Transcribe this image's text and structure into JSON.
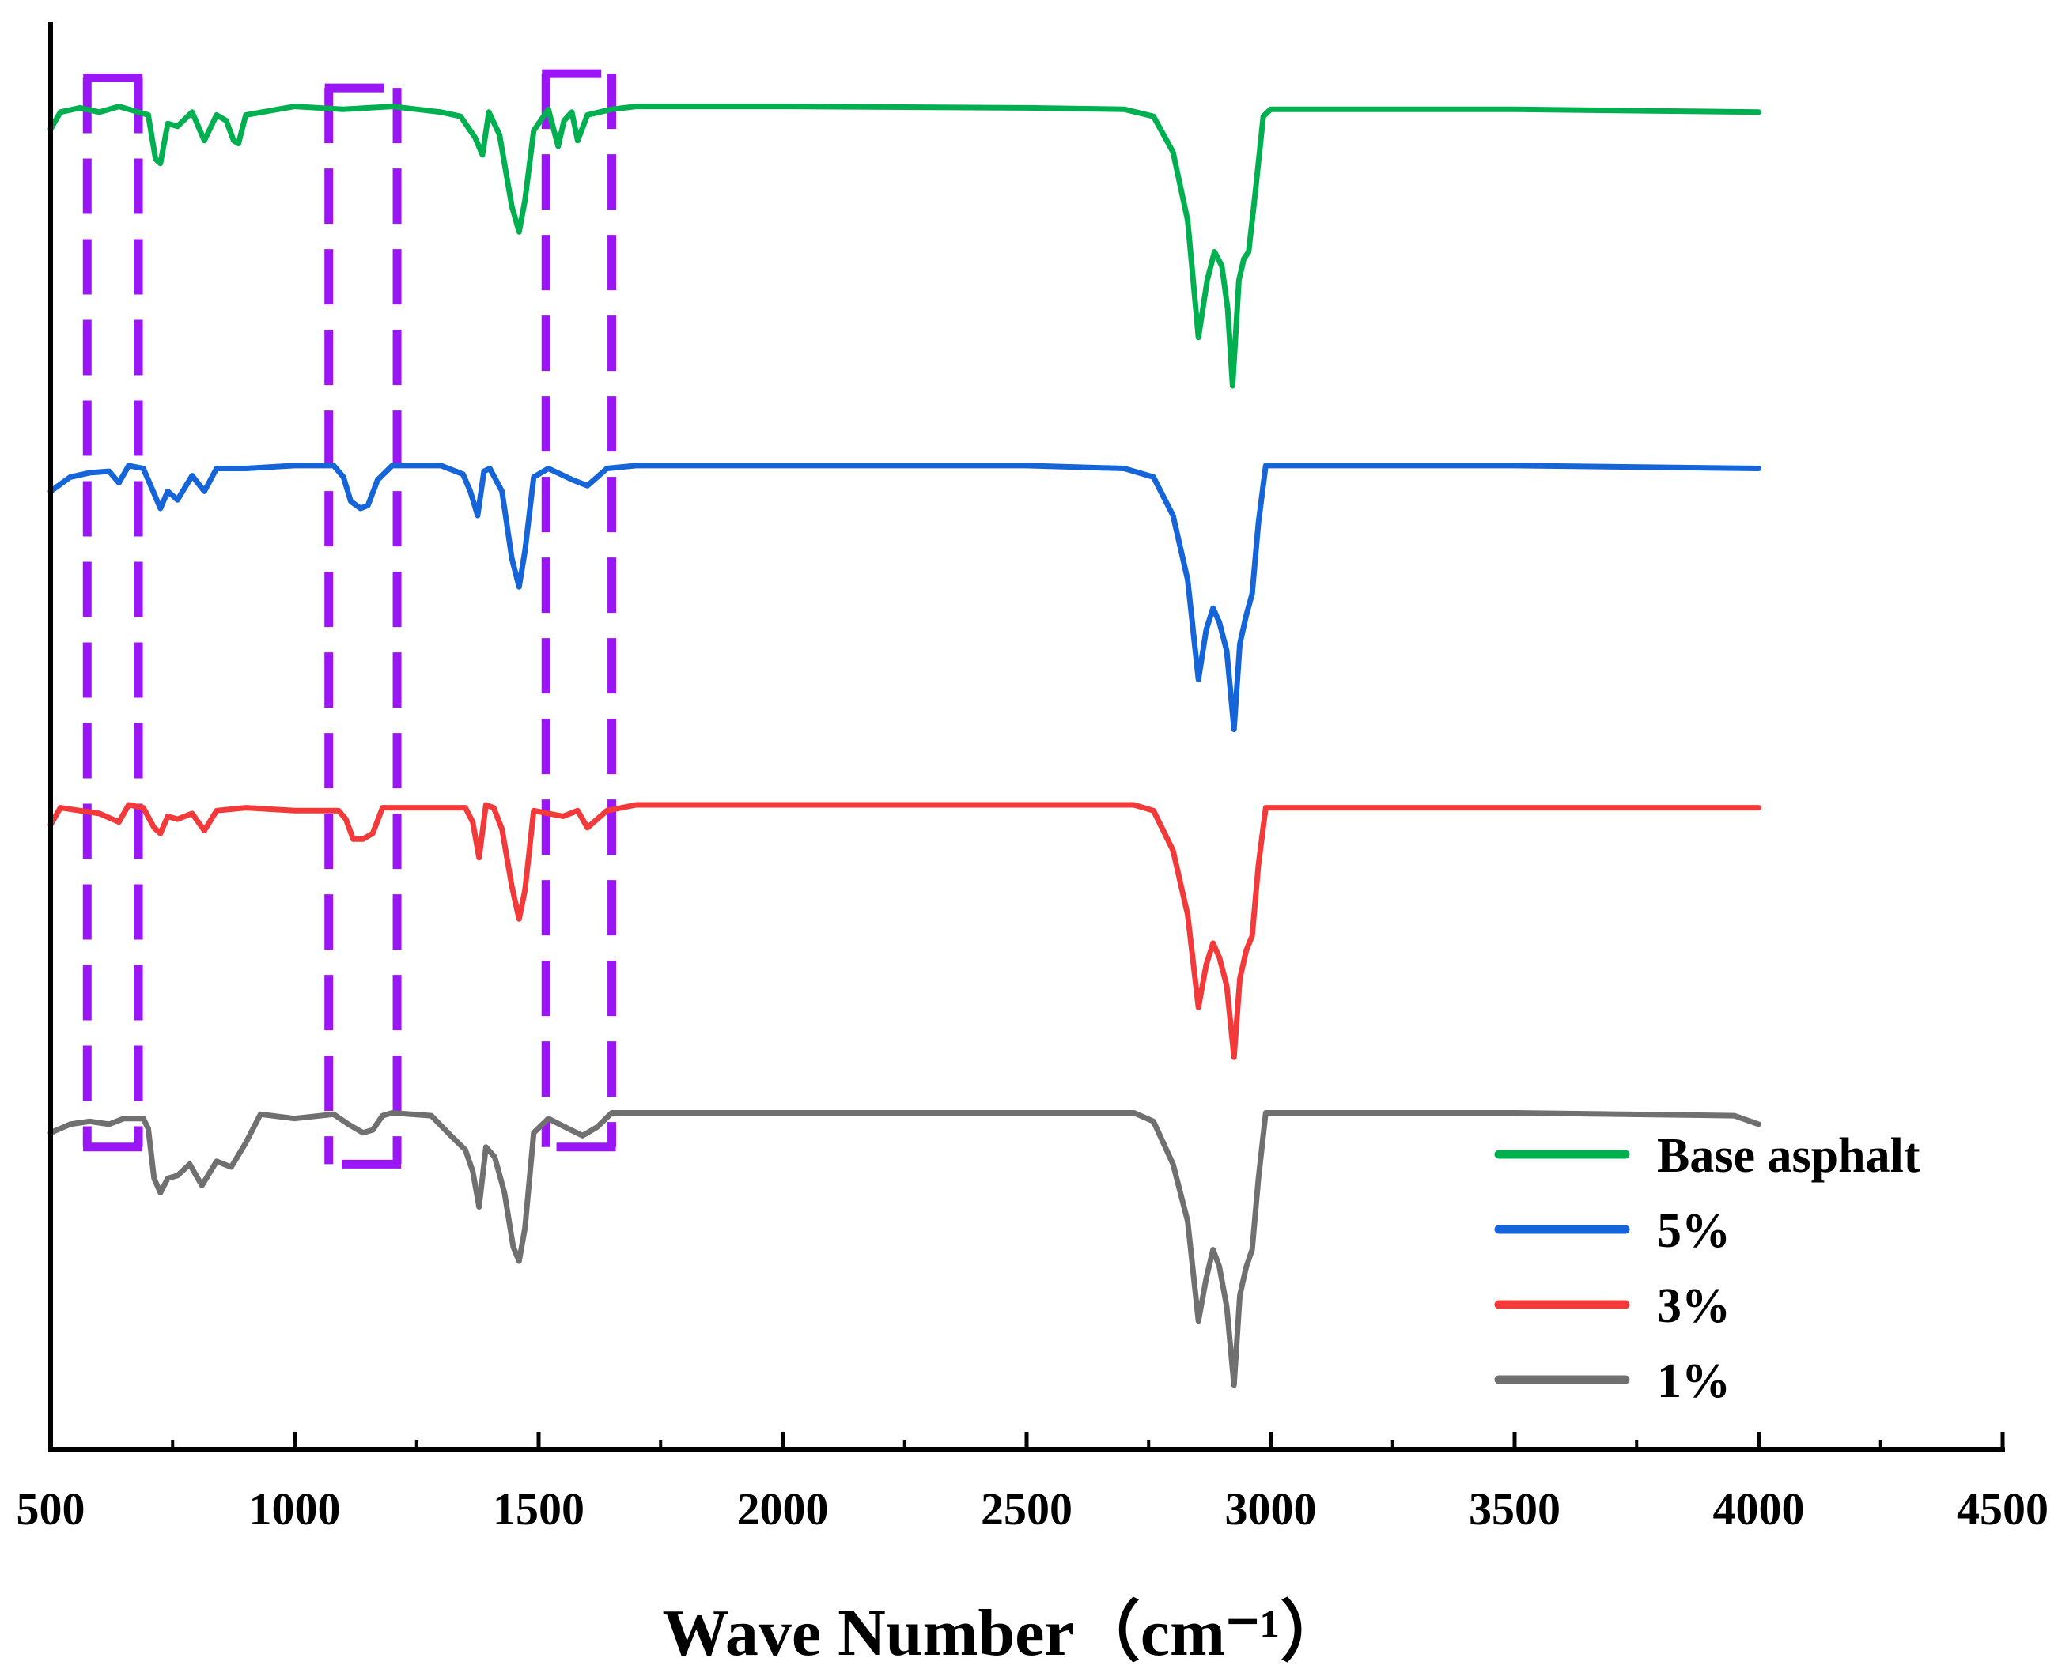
{
  "chart_data": {
    "type": "line",
    "title": "",
    "xlabel": "Wave Number（cm⁻¹）",
    "ylabel": "",
    "xlim": [
      500,
      4500
    ],
    "x_ticks": [
      "500",
      "1000",
      "1500",
      "2000",
      "2500",
      "3000",
      "3500",
      "4000",
      "4500"
    ],
    "y_ticks": [],
    "grid": false,
    "legend_position": "bottom-right",
    "offset_stacked": true,
    "series": [
      {
        "name": "Base asphalt",
        "color": "#00b050",
        "baseline_level": 0.94,
        "points": [
          [
            500,
            0.926
          ],
          [
            520,
            0.938
          ],
          [
            560,
            0.941
          ],
          [
            600,
            0.938
          ],
          [
            640,
            0.942
          ],
          [
            680,
            0.938
          ],
          [
            700,
            0.936
          ],
          [
            715,
            0.905
          ],
          [
            725,
            0.902
          ],
          [
            740,
            0.93
          ],
          [
            760,
            0.928
          ],
          [
            790,
            0.938
          ],
          [
            815,
            0.918
          ],
          [
            840,
            0.936
          ],
          [
            860,
            0.932
          ],
          [
            875,
            0.918
          ],
          [
            885,
            0.916
          ],
          [
            900,
            0.936
          ],
          [
            1000,
            0.942
          ],
          [
            1100,
            0.94
          ],
          [
            1200,
            0.942
          ],
          [
            1300,
            0.938
          ],
          [
            1340,
            0.935
          ],
          [
            1370,
            0.92
          ],
          [
            1385,
            0.908
          ],
          [
            1398,
            0.938
          ],
          [
            1420,
            0.922
          ],
          [
            1445,
            0.872
          ],
          [
            1460,
            0.854
          ],
          [
            1472,
            0.876
          ],
          [
            1490,
            0.925
          ],
          [
            1520,
            0.94
          ],
          [
            1540,
            0.914
          ],
          [
            1552,
            0.932
          ],
          [
            1568,
            0.938
          ],
          [
            1580,
            0.918
          ],
          [
            1600,
            0.936
          ],
          [
            1650,
            0.94
          ],
          [
            1700,
            0.942
          ],
          [
            2000,
            0.942
          ],
          [
            2500,
            0.941
          ],
          [
            2700,
            0.94
          ],
          [
            2760,
            0.935
          ],
          [
            2800,
            0.91
          ],
          [
            2830,
            0.862
          ],
          [
            2852,
            0.78
          ],
          [
            2870,
            0.82
          ],
          [
            2885,
            0.84
          ],
          [
            2900,
            0.83
          ],
          [
            2912,
            0.8
          ],
          [
            2922,
            0.746
          ],
          [
            2935,
            0.82
          ],
          [
            2945,
            0.835
          ],
          [
            2955,
            0.84
          ],
          [
            2968,
            0.88
          ],
          [
            2985,
            0.935
          ],
          [
            3000,
            0.94
          ],
          [
            3500,
            0.94
          ],
          [
            4000,
            0.938
          ]
        ]
      },
      {
        "name": "5%",
        "color": "#1565d8",
        "baseline_level": 0.69,
        "points": [
          [
            500,
            0.672
          ],
          [
            540,
            0.682
          ],
          [
            580,
            0.685
          ],
          [
            620,
            0.686
          ],
          [
            640,
            0.678
          ],
          [
            660,
            0.69
          ],
          [
            690,
            0.688
          ],
          [
            710,
            0.672
          ],
          [
            725,
            0.66
          ],
          [
            740,
            0.672
          ],
          [
            760,
            0.666
          ],
          [
            790,
            0.683
          ],
          [
            815,
            0.672
          ],
          [
            840,
            0.688
          ],
          [
            900,
            0.688
          ],
          [
            1000,
            0.69
          ],
          [
            1080,
            0.69
          ],
          [
            1100,
            0.682
          ],
          [
            1115,
            0.665
          ],
          [
            1135,
            0.66
          ],
          [
            1150,
            0.662
          ],
          [
            1170,
            0.68
          ],
          [
            1200,
            0.69
          ],
          [
            1300,
            0.69
          ],
          [
            1345,
            0.684
          ],
          [
            1360,
            0.672
          ],
          [
            1375,
            0.655
          ],
          [
            1388,
            0.686
          ],
          [
            1400,
            0.688
          ],
          [
            1425,
            0.672
          ],
          [
            1445,
            0.625
          ],
          [
            1460,
            0.605
          ],
          [
            1472,
            0.63
          ],
          [
            1490,
            0.682
          ],
          [
            1520,
            0.688
          ],
          [
            1570,
            0.68
          ],
          [
            1600,
            0.676
          ],
          [
            1640,
            0.688
          ],
          [
            1700,
            0.69
          ],
          [
            2000,
            0.69
          ],
          [
            2500,
            0.69
          ],
          [
            2700,
            0.688
          ],
          [
            2760,
            0.682
          ],
          [
            2800,
            0.655
          ],
          [
            2830,
            0.61
          ],
          [
            2852,
            0.54
          ],
          [
            2868,
            0.575
          ],
          [
            2882,
            0.59
          ],
          [
            2895,
            0.58
          ],
          [
            2910,
            0.56
          ],
          [
            2925,
            0.505
          ],
          [
            2937,
            0.565
          ],
          [
            2950,
            0.585
          ],
          [
            2962,
            0.6
          ],
          [
            2975,
            0.65
          ],
          [
            2990,
            0.69
          ],
          [
            3500,
            0.69
          ],
          [
            4000,
            0.688
          ]
        ]
      },
      {
        "name": "3%",
        "color": "#f23a3a",
        "baseline_level": 0.45,
        "points": [
          [
            500,
            0.438
          ],
          [
            520,
            0.45
          ],
          [
            560,
            0.448
          ],
          [
            600,
            0.446
          ],
          [
            640,
            0.44
          ],
          [
            660,
            0.452
          ],
          [
            690,
            0.45
          ],
          [
            712,
            0.436
          ],
          [
            725,
            0.432
          ],
          [
            740,
            0.444
          ],
          [
            760,
            0.442
          ],
          [
            790,
            0.446
          ],
          [
            815,
            0.434
          ],
          [
            840,
            0.448
          ],
          [
            900,
            0.45
          ],
          [
            1000,
            0.448
          ],
          [
            1090,
            0.448
          ],
          [
            1105,
            0.442
          ],
          [
            1120,
            0.428
          ],
          [
            1140,
            0.428
          ],
          [
            1160,
            0.432
          ],
          [
            1180,
            0.45
          ],
          [
            1300,
            0.45
          ],
          [
            1350,
            0.45
          ],
          [
            1365,
            0.44
          ],
          [
            1378,
            0.415
          ],
          [
            1392,
            0.452
          ],
          [
            1408,
            0.45
          ],
          [
            1425,
            0.435
          ],
          [
            1445,
            0.395
          ],
          [
            1460,
            0.372
          ],
          [
            1472,
            0.392
          ],
          [
            1490,
            0.448
          ],
          [
            1550,
            0.444
          ],
          [
            1580,
            0.448
          ],
          [
            1600,
            0.436
          ],
          [
            1640,
            0.448
          ],
          [
            1700,
            0.452
          ],
          [
            2000,
            0.452
          ],
          [
            2500,
            0.452
          ],
          [
            2720,
            0.452
          ],
          [
            2760,
            0.448
          ],
          [
            2800,
            0.42
          ],
          [
            2830,
            0.375
          ],
          [
            2852,
            0.31
          ],
          [
            2868,
            0.34
          ],
          [
            2882,
            0.355
          ],
          [
            2895,
            0.345
          ],
          [
            2910,
            0.325
          ],
          [
            2925,
            0.275
          ],
          [
            2937,
            0.33
          ],
          [
            2950,
            0.35
          ],
          [
            2962,
            0.36
          ],
          [
            2975,
            0.41
          ],
          [
            2990,
            0.45
          ],
          [
            3500,
            0.45
          ],
          [
            4000,
            0.45
          ]
        ]
      },
      {
        "name": "1%",
        "color": "#707070",
        "baseline_level": 0.235,
        "points": [
          [
            500,
            0.222
          ],
          [
            540,
            0.228
          ],
          [
            580,
            0.23
          ],
          [
            620,
            0.228
          ],
          [
            650,
            0.232
          ],
          [
            690,
            0.232
          ],
          [
            700,
            0.225
          ],
          [
            712,
            0.19
          ],
          [
            725,
            0.18
          ],
          [
            740,
            0.19
          ],
          [
            760,
            0.192
          ],
          [
            785,
            0.2
          ],
          [
            810,
            0.185
          ],
          [
            840,
            0.202
          ],
          [
            870,
            0.198
          ],
          [
            900,
            0.215
          ],
          [
            930,
            0.235
          ],
          [
            1000,
            0.232
          ],
          [
            1080,
            0.235
          ],
          [
            1110,
            0.228
          ],
          [
            1140,
            0.222
          ],
          [
            1160,
            0.224
          ],
          [
            1180,
            0.234
          ],
          [
            1200,
            0.236
          ],
          [
            1280,
            0.234
          ],
          [
            1320,
            0.22
          ],
          [
            1350,
            0.21
          ],
          [
            1365,
            0.195
          ],
          [
            1378,
            0.17
          ],
          [
            1392,
            0.212
          ],
          [
            1410,
            0.205
          ],
          [
            1430,
            0.18
          ],
          [
            1448,
            0.142
          ],
          [
            1460,
            0.132
          ],
          [
            1472,
            0.155
          ],
          [
            1490,
            0.222
          ],
          [
            1520,
            0.232
          ],
          [
            1560,
            0.225
          ],
          [
            1590,
            0.22
          ],
          [
            1620,
            0.226
          ],
          [
            1650,
            0.236
          ],
          [
            1700,
            0.236
          ],
          [
            2000,
            0.236
          ],
          [
            2500,
            0.236
          ],
          [
            2720,
            0.236
          ],
          [
            2760,
            0.23
          ],
          [
            2800,
            0.2
          ],
          [
            2830,
            0.16
          ],
          [
            2852,
            0.09
          ],
          [
            2868,
            0.12
          ],
          [
            2882,
            0.14
          ],
          [
            2895,
            0.128
          ],
          [
            2910,
            0.1
          ],
          [
            2925,
            0.045
          ],
          [
            2937,
            0.108
          ],
          [
            2950,
            0.128
          ],
          [
            2962,
            0.14
          ],
          [
            2975,
            0.19
          ],
          [
            2990,
            0.236
          ],
          [
            3500,
            0.236
          ],
          [
            3950,
            0.234
          ],
          [
            4000,
            0.228
          ]
        ]
      }
    ],
    "annotations": [
      {
        "type": "dashed-bracket",
        "color": "#9b16f5",
        "x_range": [
          575,
          680
        ],
        "y_range": [
          0.212,
          0.962
        ]
      },
      {
        "type": "dashed-bracket",
        "color": "#9b16f5",
        "x_range": [
          1070,
          1210
        ],
        "y_range": [
          0.2,
          0.955
        ]
      },
      {
        "type": "dashed-bracket",
        "color": "#9b16f5",
        "x_range": [
          1515,
          1650
        ],
        "y_range": [
          0.212,
          0.965
        ]
      }
    ]
  }
}
